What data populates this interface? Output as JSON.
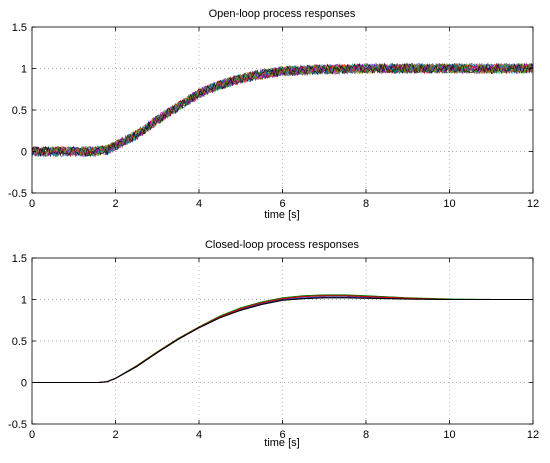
{
  "chart_data": [
    {
      "type": "line",
      "title": "Open-loop process responses",
      "xlabel": "time [s]",
      "ylabel": "",
      "xlim": [
        0,
        12
      ],
      "ylim": [
        -0.5,
        1.5
      ],
      "xticks": [
        0,
        2,
        4,
        6,
        8,
        10,
        12
      ],
      "yticks": [
        -0.5,
        0,
        0.5,
        1,
        1.5
      ],
      "xtick_labels": [
        "0",
        "2",
        "4",
        "6",
        "8",
        "10",
        "12"
      ],
      "ytick_labels": [
        "-0.5",
        "0",
        "0.5",
        "1",
        "1.5"
      ],
      "grid": true,
      "noisy": true,
      "noise_amplitude": 0.06,
      "series_colors": [
        "#1f3fd0",
        "#008000",
        "#d40000",
        "#00a0a0",
        "#c000c0",
        "#a0a000",
        "#000000"
      ],
      "x": [
        0,
        1,
        1.5,
        1.8,
        2,
        2.5,
        3,
        3.5,
        4,
        4.5,
        5,
        5.5,
        6,
        7,
        8,
        9,
        10,
        11,
        12
      ],
      "y": [
        0,
        0,
        0,
        0.02,
        0.07,
        0.2,
        0.38,
        0.54,
        0.7,
        0.8,
        0.88,
        0.93,
        0.97,
        0.99,
        1.0,
        1.0,
        1.0,
        1.0,
        1.0
      ]
    },
    {
      "type": "line",
      "title": "Closed-loop process responses",
      "xlabel": "time [s]",
      "ylabel": "",
      "xlim": [
        0,
        12
      ],
      "ylim": [
        -0.5,
        1.5
      ],
      "xticks": [
        0,
        2,
        4,
        6,
        8,
        10,
        12
      ],
      "yticks": [
        -0.5,
        0,
        0.5,
        1,
        1.5
      ],
      "xtick_labels": [
        "0",
        "2",
        "4",
        "6",
        "8",
        "10",
        "12"
      ],
      "ytick_labels": [
        "-0.5",
        "0",
        "0.5",
        "1",
        "1.5"
      ],
      "grid": true,
      "noisy": false,
      "series": [
        {
          "color": "#1f3fd0",
          "x": [
            0,
            1.6,
            1.8,
            2,
            2.5,
            3,
            3.5,
            4,
            4.5,
            5,
            5.5,
            6,
            6.5,
            7,
            7.5,
            8,
            9,
            10,
            11,
            12
          ],
          "y": [
            0,
            0,
            0.01,
            0.05,
            0.19,
            0.36,
            0.52,
            0.66,
            0.78,
            0.88,
            0.95,
            1.0,
            1.02,
            1.03,
            1.03,
            1.025,
            1.01,
            1.0,
            1.0,
            1.0
          ]
        },
        {
          "color": "#008000",
          "x": [
            0,
            1.6,
            1.8,
            2,
            2.5,
            3,
            3.5,
            4,
            4.5,
            5,
            5.5,
            6,
            6.5,
            7,
            7.5,
            8,
            9,
            10,
            11,
            12
          ],
          "y": [
            0,
            0,
            0.01,
            0.05,
            0.2,
            0.37,
            0.53,
            0.67,
            0.8,
            0.9,
            0.97,
            1.02,
            1.045,
            1.055,
            1.055,
            1.045,
            1.02,
            1.005,
            1.0,
            1.0
          ]
        },
        {
          "color": "#d40000",
          "x": [
            0,
            1.6,
            1.8,
            2,
            2.5,
            3,
            3.5,
            4,
            4.5,
            5,
            5.5,
            6,
            6.5,
            7,
            7.5,
            8,
            9,
            10,
            11,
            12
          ],
          "y": [
            0,
            0,
            0.01,
            0.05,
            0.195,
            0.365,
            0.525,
            0.665,
            0.79,
            0.89,
            0.96,
            1.01,
            1.035,
            1.045,
            1.045,
            1.035,
            1.015,
            1.0,
            1.0,
            1.0
          ]
        },
        {
          "color": "#000000",
          "x": [
            0,
            1.6,
            1.8,
            2,
            2.5,
            3,
            3.5,
            4,
            4.5,
            5,
            5.5,
            6,
            6.5,
            7,
            7.5,
            8,
            9,
            10,
            11,
            12
          ],
          "y": [
            0,
            0,
            0.01,
            0.05,
            0.19,
            0.36,
            0.52,
            0.66,
            0.78,
            0.87,
            0.94,
            0.99,
            1.01,
            1.02,
            1.02,
            1.015,
            1.005,
            1.0,
            1.0,
            1.0
          ]
        }
      ]
    }
  ]
}
